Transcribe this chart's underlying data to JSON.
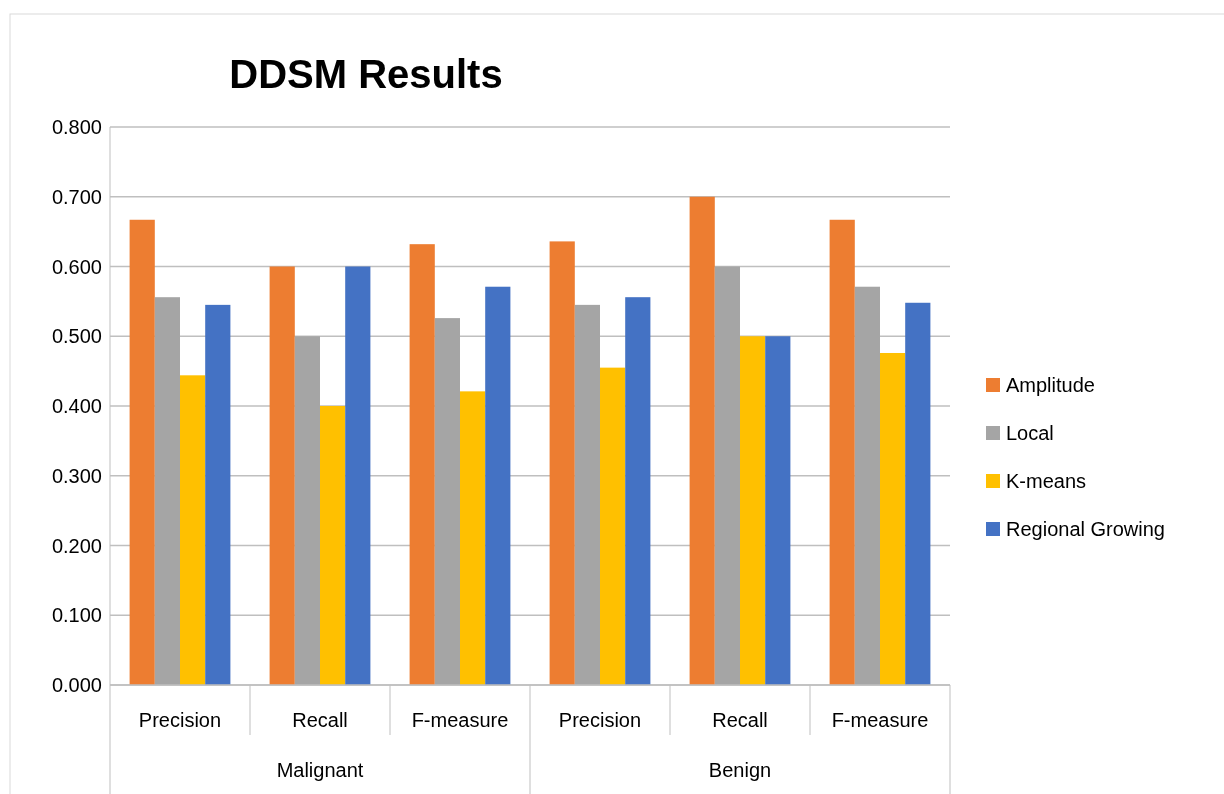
{
  "chart_data": {
    "type": "bar",
    "title": "DDSM Results",
    "categories": [
      "Precision",
      "Recall",
      "F-measure",
      "Precision",
      "Recall",
      "F-measure"
    ],
    "annotations": [
      "Malignant",
      "Benign"
    ],
    "series": [
      {
        "name": "Amplitude",
        "color": "#ed7d31",
        "values": [
          0.667,
          0.6,
          0.632,
          0.636,
          0.7,
          0.667
        ]
      },
      {
        "name": "Local",
        "color": "#a5a5a5",
        "values": [
          0.556,
          0.5,
          0.526,
          0.545,
          0.6,
          0.571
        ]
      },
      {
        "name": "K-means",
        "color": "#ffc000",
        "values": [
          0.444,
          0.4,
          0.421,
          0.455,
          0.5,
          0.476
        ]
      },
      {
        "name": "Regional Growing",
        "color": "#4472c4",
        "values": [
          0.545,
          0.6,
          0.571,
          0.556,
          0.5,
          0.548
        ]
      }
    ],
    "ylim": [
      0,
      0.8
    ],
    "yticks": [
      {
        "value": 0,
        "label": "0.000"
      },
      {
        "value": 0.1,
        "label": "0.100"
      },
      {
        "value": 0.2,
        "label": "0.200"
      },
      {
        "value": 0.3,
        "label": "0.300"
      },
      {
        "value": 0.4,
        "label": "0.400"
      },
      {
        "value": 0.5,
        "label": "0.500"
      },
      {
        "value": 0.6,
        "label": "0.600"
      },
      {
        "value": 0.7,
        "label": "0.700"
      },
      {
        "value": 0.8,
        "label": "0.800"
      }
    ],
    "grid": "y",
    "legend": "right"
  }
}
